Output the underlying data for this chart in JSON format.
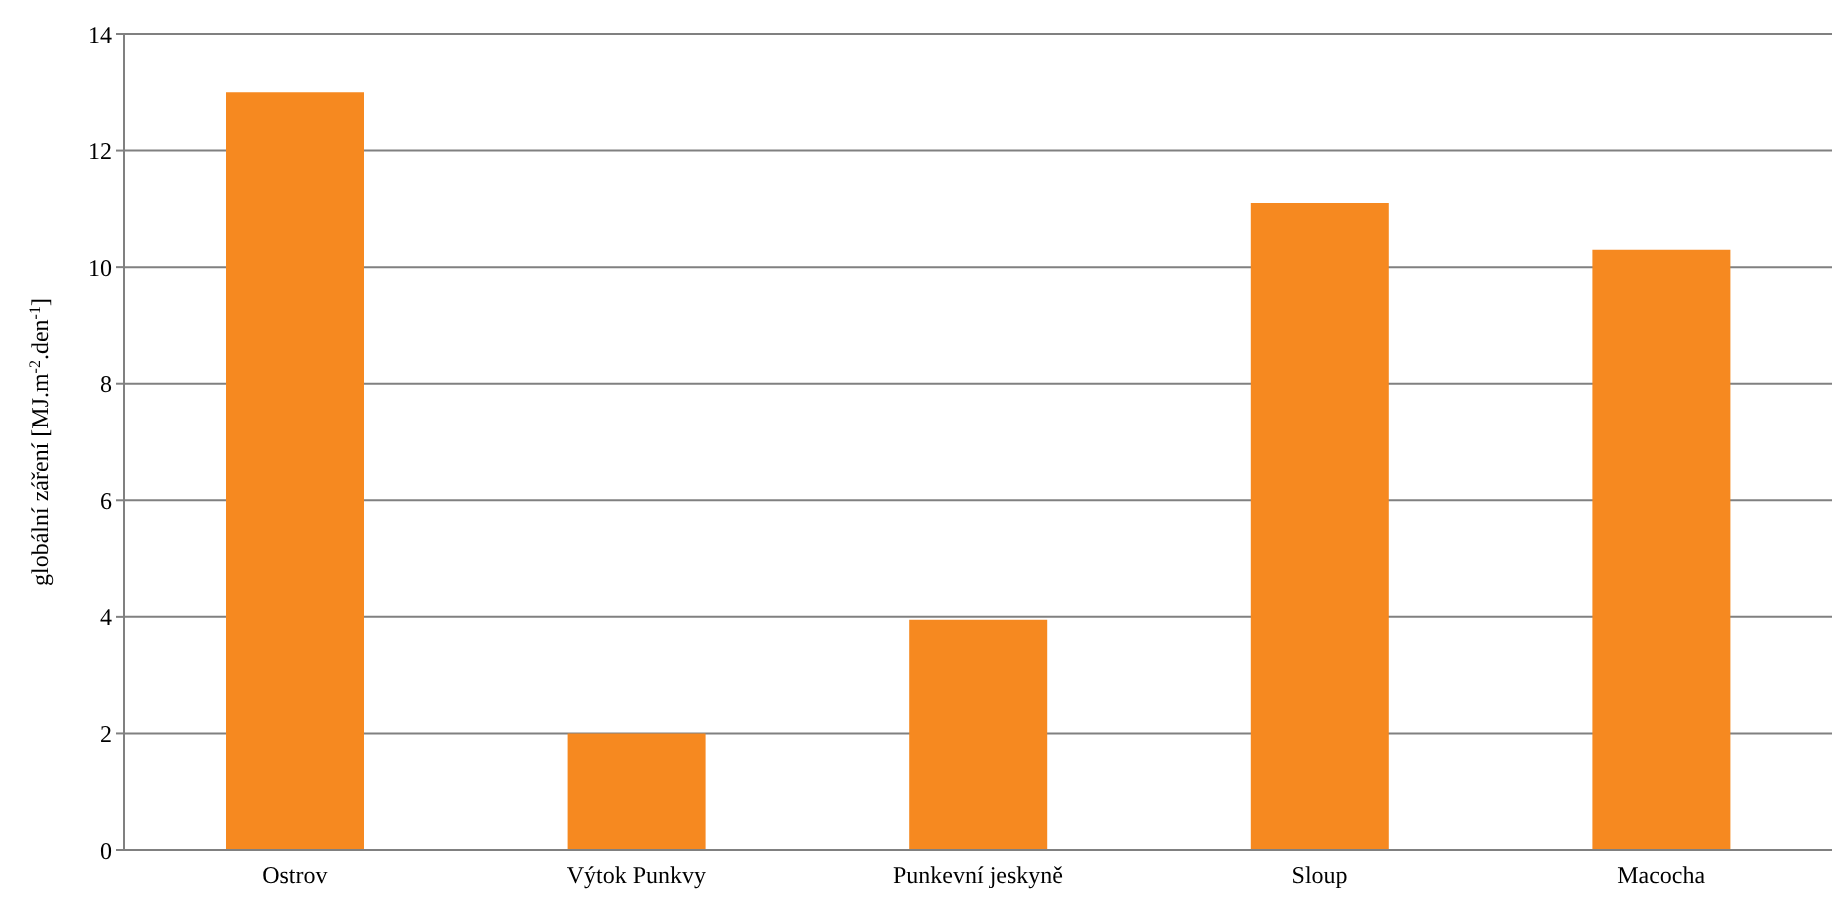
{
  "chart_data": {
    "type": "bar",
    "ylabel": "globální záření [MJ.m$^{-2}$.den$^{-1}$]",
    "categories": [
      "Ostrov",
      "Výtok Punkvy",
      "Punkevní jeskyně",
      "Sloup",
      "Macocha"
    ],
    "values": [
      13.0,
      2.0,
      3.95,
      11.1,
      10.3
    ],
    "color": "#f68920",
    "ylim": [
      0,
      14
    ],
    "yticks": [
      0,
      2,
      4,
      6,
      8,
      10,
      12,
      14
    ],
    "grid": "y",
    "legend": false
  }
}
